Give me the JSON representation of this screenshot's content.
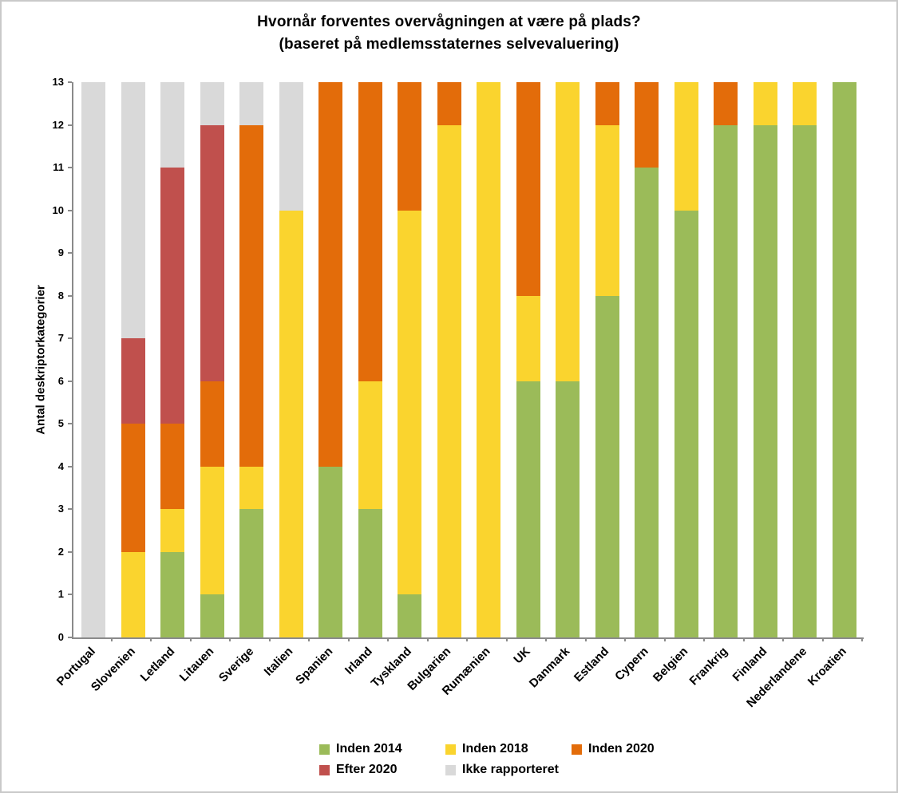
{
  "title": {
    "line1": "Hvornår forventes overvågningen at være på plads?",
    "line2": "(baseret på medlemsstaternes selvevaluering)"
  },
  "chart_data": {
    "type": "bar",
    "stacked": true,
    "title": "Hvornår forventes overvågningen at være på plads?",
    "subtitle": "(baseret på medlemsstaternes selvevaluering)",
    "xlabel": "",
    "ylabel": "Antal deskriptorkategorier",
    "ylim": [
      0,
      13
    ],
    "y_ticks": [
      0,
      1,
      2,
      3,
      4,
      5,
      6,
      7,
      8,
      9,
      10,
      11,
      12,
      13
    ],
    "grid": false,
    "legend_position": "bottom",
    "legend_per_row": 3,
    "categories": [
      "Portugal",
      "Slovenien",
      "Letland",
      "Litauen",
      "Sverige",
      "Italien",
      "Spanien",
      "Irland",
      "Tyskland",
      "Bulgarien",
      "Rumænien",
      "UK",
      "Danmark",
      "Estland",
      "Cypern",
      "Belgien",
      "Frankrig",
      "Finland",
      "Nederlandene",
      "Kroatien"
    ],
    "series": [
      {
        "name": "Inden 2014",
        "color": "#9BBB59",
        "values": [
          0,
          0,
          2,
          1,
          3,
          0,
          4,
          3,
          1,
          0,
          0,
          6,
          6,
          8,
          11,
          10,
          12,
          12,
          12,
          13
        ]
      },
      {
        "name": "Inden 2018",
        "color": "#FAD42E",
        "values": [
          0,
          2,
          1,
          3,
          1,
          10,
          0,
          3,
          9,
          12,
          13,
          2,
          7,
          4,
          0,
          3,
          0,
          1,
          1,
          0
        ]
      },
      {
        "name": "Inden 2020",
        "color": "#E36C0A",
        "values": [
          0,
          3,
          2,
          2,
          8,
          0,
          9,
          7,
          3,
          1,
          0,
          5,
          0,
          1,
          2,
          0,
          1,
          0,
          0,
          0
        ]
      },
      {
        "name": "Efter 2020",
        "color": "#C0504D",
        "values": [
          0,
          2,
          6,
          6,
          0,
          0,
          0,
          0,
          0,
          0,
          0,
          0,
          0,
          0,
          0,
          0,
          0,
          0,
          0,
          0
        ]
      },
      {
        "name": "Ikke rapporteret",
        "color": "#D9D9D9",
        "values": [
          13,
          6,
          2,
          1,
          1,
          3,
          0,
          0,
          0,
          0,
          0,
          0,
          0,
          0,
          0,
          0,
          0,
          0,
          0,
          0
        ]
      }
    ]
  },
  "colors": {
    "axis_line": "#8a8a8a",
    "text": "#000000",
    "outer_border": "#c9c9c9"
  }
}
